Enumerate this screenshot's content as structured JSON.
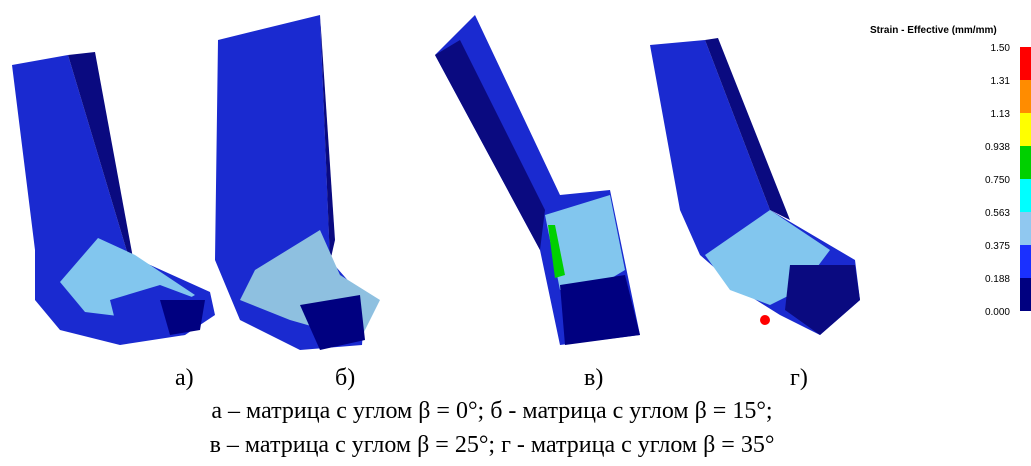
{
  "figure": {
    "panels": [
      "а)",
      "б)",
      "в)",
      "г)"
    ],
    "legend": {
      "title": "Strain - Effective (mm/mm)",
      "ticks": [
        "1.50",
        "1.31",
        "1.13",
        "0.938",
        "0.750",
        "0.563",
        "0.375",
        "0.188",
        "0.000"
      ],
      "colors": [
        "#ff0000",
        "#ff8c00",
        "#ffff00",
        "#00d000",
        "#00ffff",
        "#90c8f0",
        "#1a30ff",
        "#000080"
      ]
    },
    "caption": [
      "а – матрица с углом β = 0°; б - матрица с углом β = 15°;",
      "в – матрица с углом β = 25°; г - матрица с углом β = 35°"
    ]
  }
}
